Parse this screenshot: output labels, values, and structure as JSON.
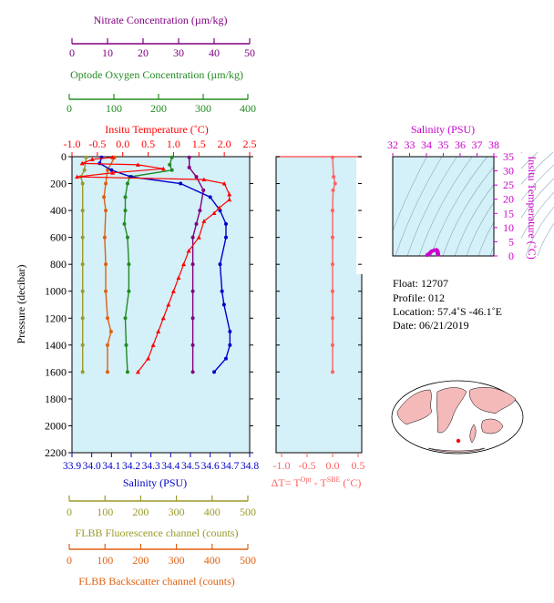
{
  "colors": {
    "nitrate": "#800080",
    "oxygen": "#228B22",
    "temperature": "#ff0000",
    "salinity": "#0000cc",
    "fluorescence": "#9a9a2a",
    "backscatter": "#e06010",
    "delta_t": "#ff6060",
    "ts_axis": "#cc00cc",
    "plot_bg": "#d4f0f8"
  },
  "axes": {
    "nitrate": {
      "label": "Nitrate Concentration (µm/kg)",
      "ticks": [
        "0",
        "10",
        "20",
        "30",
        "40",
        "50"
      ]
    },
    "oxygen": {
      "label": "Optode Oxygen Concentration (µm/kg)",
      "ticks": [
        "0",
        "100",
        "200",
        "300",
        "400"
      ]
    },
    "temperature": {
      "label": "Insitu Temperature (˚C)",
      "ticks": [
        "-1.0",
        "-0.5",
        "0.0",
        "0.5",
        "1.0",
        "1.5",
        "2.0",
        "2.5"
      ]
    },
    "salinity": {
      "label": "Salinity (PSU)",
      "ticks": [
        "33.9",
        "34.0",
        "34.1",
        "34.2",
        "34.3",
        "34.4",
        "34.5",
        "34.6",
        "34.7",
        "34.8"
      ]
    },
    "pressure": {
      "label": "Pressure (decibar)",
      "ticks": [
        "0",
        "200",
        "400",
        "600",
        "800",
        "1000",
        "1200",
        "1400",
        "1600",
        "1800",
        "2000",
        "2200"
      ]
    },
    "fluorescence": {
      "label": "FLBB Fluorescence channel (counts)",
      "ticks": [
        "0",
        "100",
        "200",
        "300",
        "400",
        "500"
      ]
    },
    "backscatter": {
      "label": "FLBB Backscatter channel (counts)",
      "ticks": [
        "0",
        "100",
        "200",
        "300",
        "400",
        "500"
      ]
    },
    "delta_t": {
      "label_main": "ΔT= T",
      "sup1": "Opt",
      "label_mid": " - T",
      "sup2": "SBE",
      "label_end": " (˚C)",
      "ticks": [
        "-1.0",
        "-0.5",
        "0.0",
        "0.5"
      ]
    },
    "ts_salinity": {
      "label": "Salinity (PSU)",
      "ticks": [
        "32",
        "33",
        "34",
        "35",
        "36",
        "37",
        "38"
      ]
    },
    "ts_temperature": {
      "label": "Insitu Temperature (˚C)",
      "ticks": [
        "0",
        "5",
        "10",
        "15",
        "20",
        "25",
        "30",
        "35"
      ]
    }
  },
  "info": {
    "float": "Float:  12707",
    "profile": "Profile:  012",
    "location": "Location:  57.4˚S  -46.1˚E",
    "date": "Date:  06/21/2019"
  },
  "chart_data": [
    {
      "type": "line",
      "ylabel": "Pressure (decibar)",
      "ylim": [
        2200,
        0
      ],
      "series": [
        {
          "name": "Insitu Temperature (˚C)",
          "xlim": [
            -1.0,
            2.5
          ],
          "points": [
            [
              -0.2,
              5
            ],
            [
              -0.6,
              20
            ],
            [
              -0.8,
              50
            ],
            [
              0.3,
              60
            ],
            [
              0.8,
              90
            ],
            [
              -0.2,
              120
            ],
            [
              -0.9,
              150
            ],
            [
              1.6,
              170
            ],
            [
              2.0,
              200
            ],
            [
              2.1,
              280
            ],
            [
              2.1,
              320
            ],
            [
              1.9,
              380
            ],
            [
              1.8,
              420
            ],
            [
              1.6,
              480
            ],
            [
              1.5,
              600
            ],
            [
              1.3,
              700
            ],
            [
              1.2,
              800
            ],
            [
              1.1,
              900
            ],
            [
              1.0,
              1000
            ],
            [
              0.9,
              1100
            ],
            [
              0.8,
              1200
            ],
            [
              0.7,
              1300
            ],
            [
              0.6,
              1400
            ],
            [
              0.5,
              1500
            ],
            [
              0.3,
              1600
            ]
          ]
        },
        {
          "name": "Salinity (PSU)",
          "xlim": [
            33.9,
            34.8
          ],
          "points": [
            [
              34.05,
              5
            ],
            [
              34.04,
              50
            ],
            [
              34.1,
              100
            ],
            [
              34.2,
              150
            ],
            [
              34.45,
              200
            ],
            [
              34.6,
              300
            ],
            [
              34.65,
              400
            ],
            [
              34.68,
              500
            ],
            [
              34.68,
              600
            ],
            [
              34.65,
              800
            ],
            [
              34.66,
              1000
            ],
            [
              34.67,
              1100
            ],
            [
              34.7,
              1300
            ],
            [
              34.7,
              1400
            ],
            [
              34.68,
              1500
            ],
            [
              34.62,
              1600
            ]
          ]
        },
        {
          "name": "Optode Oxygen Concentration (µm/kg)",
          "xlim": [
            0,
            400
          ],
          "points": [
            [
              225,
              5
            ],
            [
              220,
              60
            ],
            [
              225,
              100
            ],
            [
              130,
              150
            ],
            [
              125,
              200
            ],
            [
              120,
              300
            ],
            [
              120,
              400
            ],
            [
              118,
              500
            ],
            [
              125,
              600
            ],
            [
              128,
              800
            ],
            [
              128,
              1000
            ],
            [
              120,
              1200
            ],
            [
              122,
              1400
            ],
            [
              125,
              1600
            ]
          ]
        },
        {
          "name": "Nitrate Concentration (µm/kg)",
          "xlim": [
            0,
            50
          ],
          "points": [
            [
              33,
              5
            ],
            [
              33,
              80
            ],
            [
              35,
              150
            ],
            [
              37,
              250
            ],
            [
              36,
              400
            ],
            [
              35,
              500
            ],
            [
              34,
              600
            ],
            [
              34,
              800
            ],
            [
              34,
              1000
            ],
            [
              34,
              1200
            ],
            [
              34,
              1400
            ],
            [
              34,
              1600
            ]
          ]
        },
        {
          "name": "FLBB Fluorescence channel (counts)",
          "xlim": [
            0,
            500
          ],
          "points": [
            [
              40,
              5
            ],
            [
              35,
              100
            ],
            [
              25,
              150
            ],
            [
              30,
              200
            ],
            [
              30,
              400
            ],
            [
              30,
              600
            ],
            [
              30,
              800
            ],
            [
              30,
              1000
            ],
            [
              30,
              1200
            ],
            [
              30,
              1400
            ],
            [
              30,
              1600
            ]
          ]
        },
        {
          "name": "FLBB Backscatter channel (counts)",
          "xlim": [
            0,
            500
          ],
          "points": [
            [
              120,
              5
            ],
            [
              100,
              100
            ],
            [
              95,
              200
            ],
            [
              90,
              300
            ],
            [
              95,
              400
            ],
            [
              92,
              600
            ],
            [
              95,
              800
            ],
            [
              95,
              1000
            ],
            [
              100,
              1200
            ],
            [
              110,
              1300
            ],
            [
              100,
              1400
            ],
            [
              100,
              1600
            ]
          ]
        }
      ]
    },
    {
      "type": "line",
      "xlabel": "ΔT= TOpt - TSBE (˚C)",
      "xlim": [
        -1.0,
        0.5
      ],
      "ylim": [
        2200,
        0
      ],
      "series": [
        {
          "points": [
            [
              0.0,
              5
            ],
            [
              0.02,
              150
            ],
            [
              0.05,
              200
            ],
            [
              0.01,
              250
            ],
            [
              0.0,
              400
            ],
            [
              0.0,
              600
            ],
            [
              0.0,
              800
            ],
            [
              0.0,
              1000
            ],
            [
              0.0,
              1200
            ],
            [
              0.0,
              1400
            ],
            [
              0.0,
              1600
            ]
          ]
        }
      ]
    },
    {
      "type": "scatter",
      "xlabel": "Salinity (PSU)",
      "ylabel": "Insitu Temperature (˚C)",
      "xlim": [
        32,
        38
      ],
      "ylim": [
        0,
        35
      ],
      "series": [
        {
          "points": [
            [
              34.05,
              -0.3
            ],
            [
              34.1,
              0.5
            ],
            [
              34.2,
              1.0
            ],
            [
              34.3,
              1.6
            ],
            [
              34.45,
              2.0
            ],
            [
              34.6,
              2.1
            ],
            [
              34.65,
              1.8
            ],
            [
              34.68,
              1.3
            ],
            [
              34.66,
              0.9
            ],
            [
              34.7,
              0.5
            ]
          ]
        }
      ]
    }
  ]
}
